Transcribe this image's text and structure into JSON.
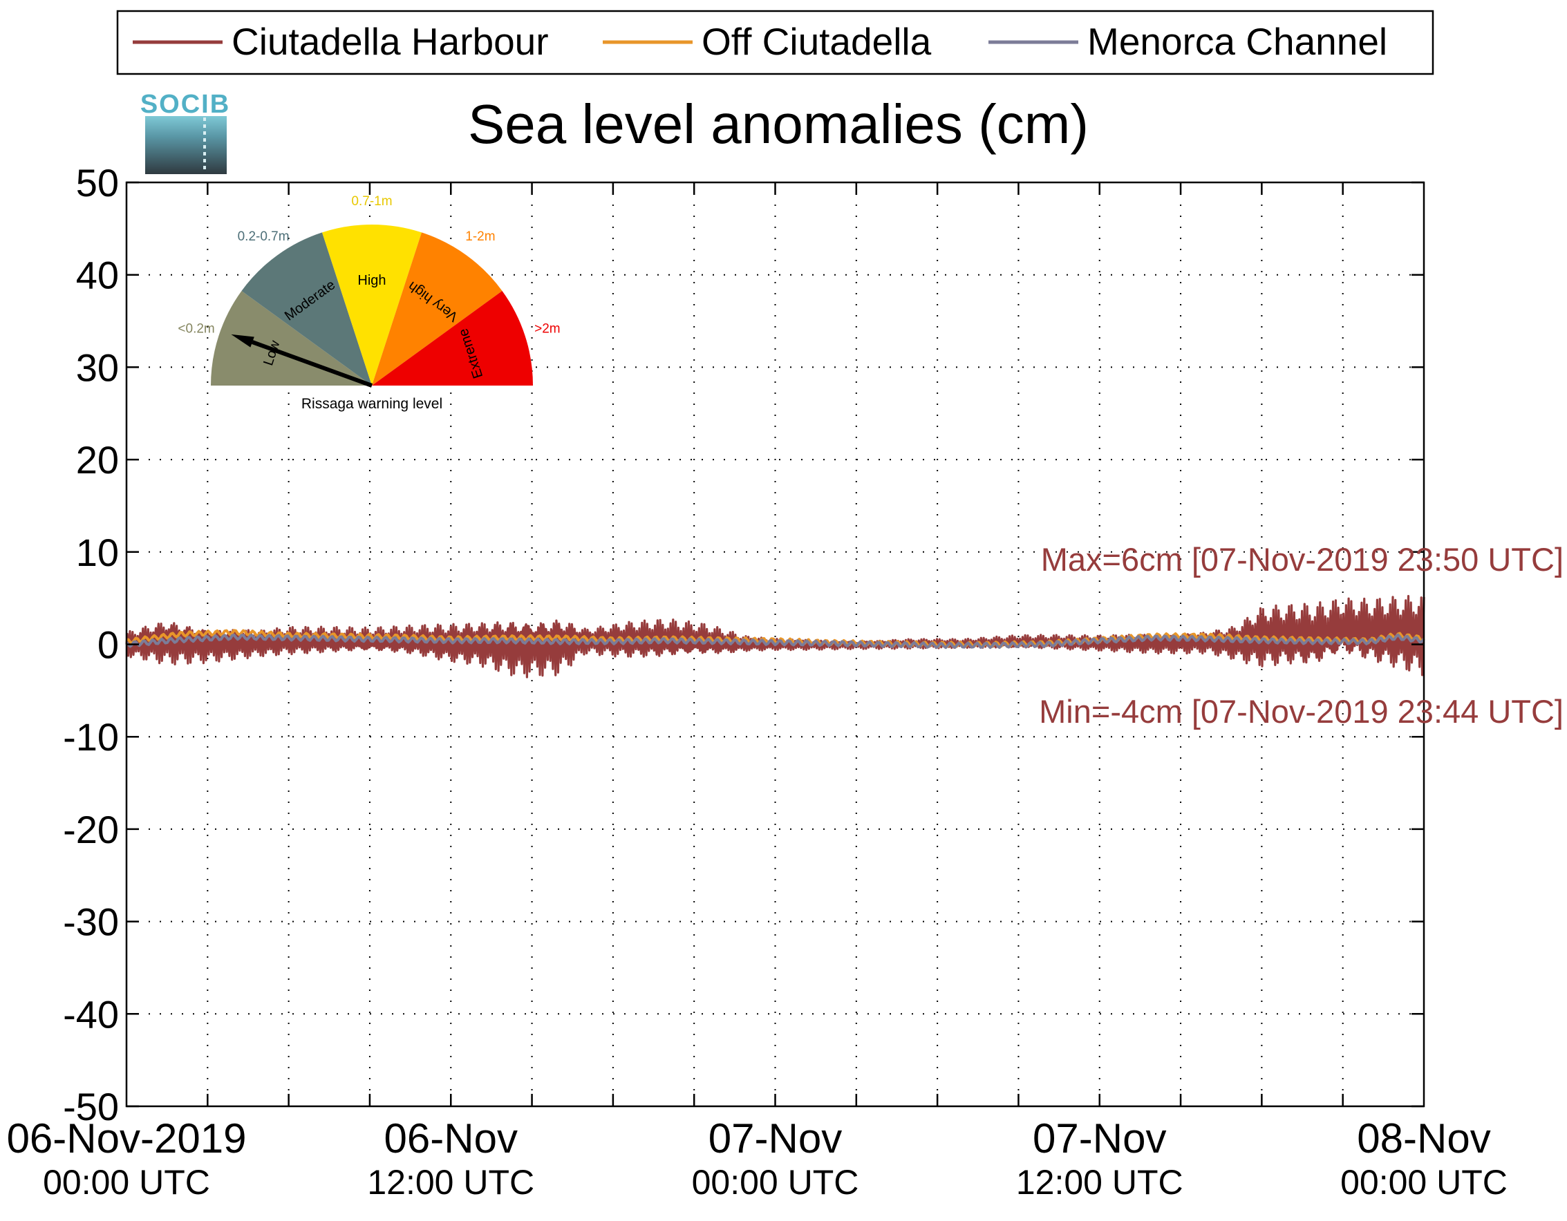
{
  "logo": {
    "text": "SOCIB"
  },
  "legend": [
    {
      "name": "Ciutadella Harbour",
      "color": "#963c3c"
    },
    {
      "name": "Off Ciutadella",
      "color": "#e8962a"
    },
    {
      "name": "Menorca Channel",
      "color": "#7c7c98"
    }
  ],
  "gauge": {
    "title": "Rissaga warning level",
    "levels": [
      {
        "name": "Low",
        "range": "<0.2m",
        "color": "#898c6c",
        "range_color": "#858660"
      },
      {
        "name": "Moderate",
        "range": "0.2-0.7m",
        "color": "#5c7878",
        "range_color": "#4d6f78"
      },
      {
        "name": "High",
        "range": "0.7-1m",
        "color": "#ffe100",
        "range_color": "#e8c800"
      },
      {
        "name": "Very high",
        "range": "1-2m",
        "color": "#ff8200",
        "range_color": "#ff8200"
      },
      {
        "name": "Extreme",
        "range": ">2m",
        "color": "#ee0000",
        "range_color": "#ee0000"
      }
    ],
    "needle_level": "Low",
    "needle_color": "#000000"
  },
  "chart_data": {
    "type": "line",
    "title": "Sea level anomalies (cm)",
    "xlabel": "",
    "ylabel": "",
    "unit": "cm",
    "x_range_hours": [
      0,
      48
    ],
    "ylim": [
      -50,
      50
    ],
    "yticks": [
      50,
      40,
      30,
      20,
      10,
      0,
      -10,
      -20,
      -30,
      -40,
      -50
    ],
    "xticks": [
      {
        "hour": 0,
        "date": "06-Nov-2019",
        "time": "00:00 UTC"
      },
      {
        "hour": 12,
        "date": "06-Nov",
        "time": "12:00 UTC"
      },
      {
        "hour": 24,
        "date": "07-Nov",
        "time": "00:00 UTC"
      },
      {
        "hour": 36,
        "date": "07-Nov",
        "time": "12:00 UTC"
      },
      {
        "hour": 48,
        "date": "08-Nov",
        "time": "00:00 UTC"
      }
    ],
    "grid": true,
    "legend_position": "top",
    "series": [
      {
        "name": "Ciutadella Harbour",
        "color": "#963c3c",
        "envelope_hours": [
          0,
          1.5,
          3,
          5,
          6,
          9,
          10.5,
          12,
          13,
          14.5,
          16,
          17,
          18.5,
          20,
          21.5,
          23,
          24,
          27,
          29,
          31,
          33,
          36,
          38,
          40,
          41,
          42,
          43,
          44,
          45,
          46,
          47,
          48
        ],
        "envelope_upper": [
          1.5,
          3.3,
          2.6,
          1.9,
          2.1,
          1.8,
          2.1,
          2.5,
          2.9,
          4,
          3.9,
          2,
          2.6,
          2.8,
          2.2,
          0.9,
          0.7,
          0.5,
          0.7,
          0.6,
          1,
          1.1,
          1.5,
          1.8,
          2.4,
          4.5,
          4.5,
          4.5,
          5,
          5,
          5.5,
          6
        ],
        "envelope_lower": [
          -1.5,
          -2.3,
          -2,
          -1.4,
          -1.3,
          -1.3,
          -1.5,
          -2.2,
          -2.4,
          -3.6,
          -3.4,
          -1.1,
          -1.8,
          -2.1,
          -1.8,
          -0.9,
          -0.7,
          -0.5,
          -0.5,
          -0.5,
          -0.7,
          -0.8,
          -1,
          -1,
          -1.8,
          -3,
          -3,
          -3.5,
          -2.5,
          -3,
          -3.5,
          -4
        ],
        "max": {
          "value": 6,
          "time": "07-Nov-2019 23:50 UTC",
          "label": "Max=6cm [07-Nov-2019 23:50 UTC]"
        },
        "min": {
          "value": -4,
          "time": "07-Nov-2019 23:44 UTC",
          "label": "Min=-4cm [07-Nov-2019 23:44 UTC]"
        }
      },
      {
        "name": "Off Ciutadella",
        "color": "#e8962a",
        "x_hours": [
          0,
          2,
          4,
          6,
          8,
          10,
          12,
          14,
          16,
          18,
          20,
          22,
          24,
          26,
          28,
          30,
          32,
          34,
          36,
          38,
          40,
          42,
          44,
          46,
          47,
          48
        ],
        "values": [
          0.3,
          1.1,
          1.3,
          1,
          0.9,
          0.8,
          0.6,
          0.7,
          0.7,
          0.5,
          0.6,
          0.5,
          0.4,
          0.2,
          0.1,
          0,
          0,
          0.1,
          0.5,
          0.9,
          0.9,
          0.6,
          0.5,
          0.4,
          1,
          0.6
        ]
      },
      {
        "name": "Menorca Channel",
        "color": "#7c7c98",
        "x_hours": [
          0,
          2,
          4,
          6,
          8,
          10,
          12,
          14,
          16,
          18,
          20,
          22,
          24,
          26,
          28,
          30,
          32,
          34,
          36,
          38,
          40,
          42,
          44,
          46,
          47,
          48
        ],
        "values": [
          0,
          0.5,
          0.8,
          0.7,
          0.6,
          0.5,
          0.4,
          0.4,
          0.3,
          0.3,
          0.4,
          0.3,
          0.2,
          0.1,
          0,
          -0.1,
          -0.1,
          0,
          0.4,
          0.7,
          0.6,
          0.4,
          0.3,
          0.3,
          0.8,
          0.4
        ]
      }
    ]
  }
}
